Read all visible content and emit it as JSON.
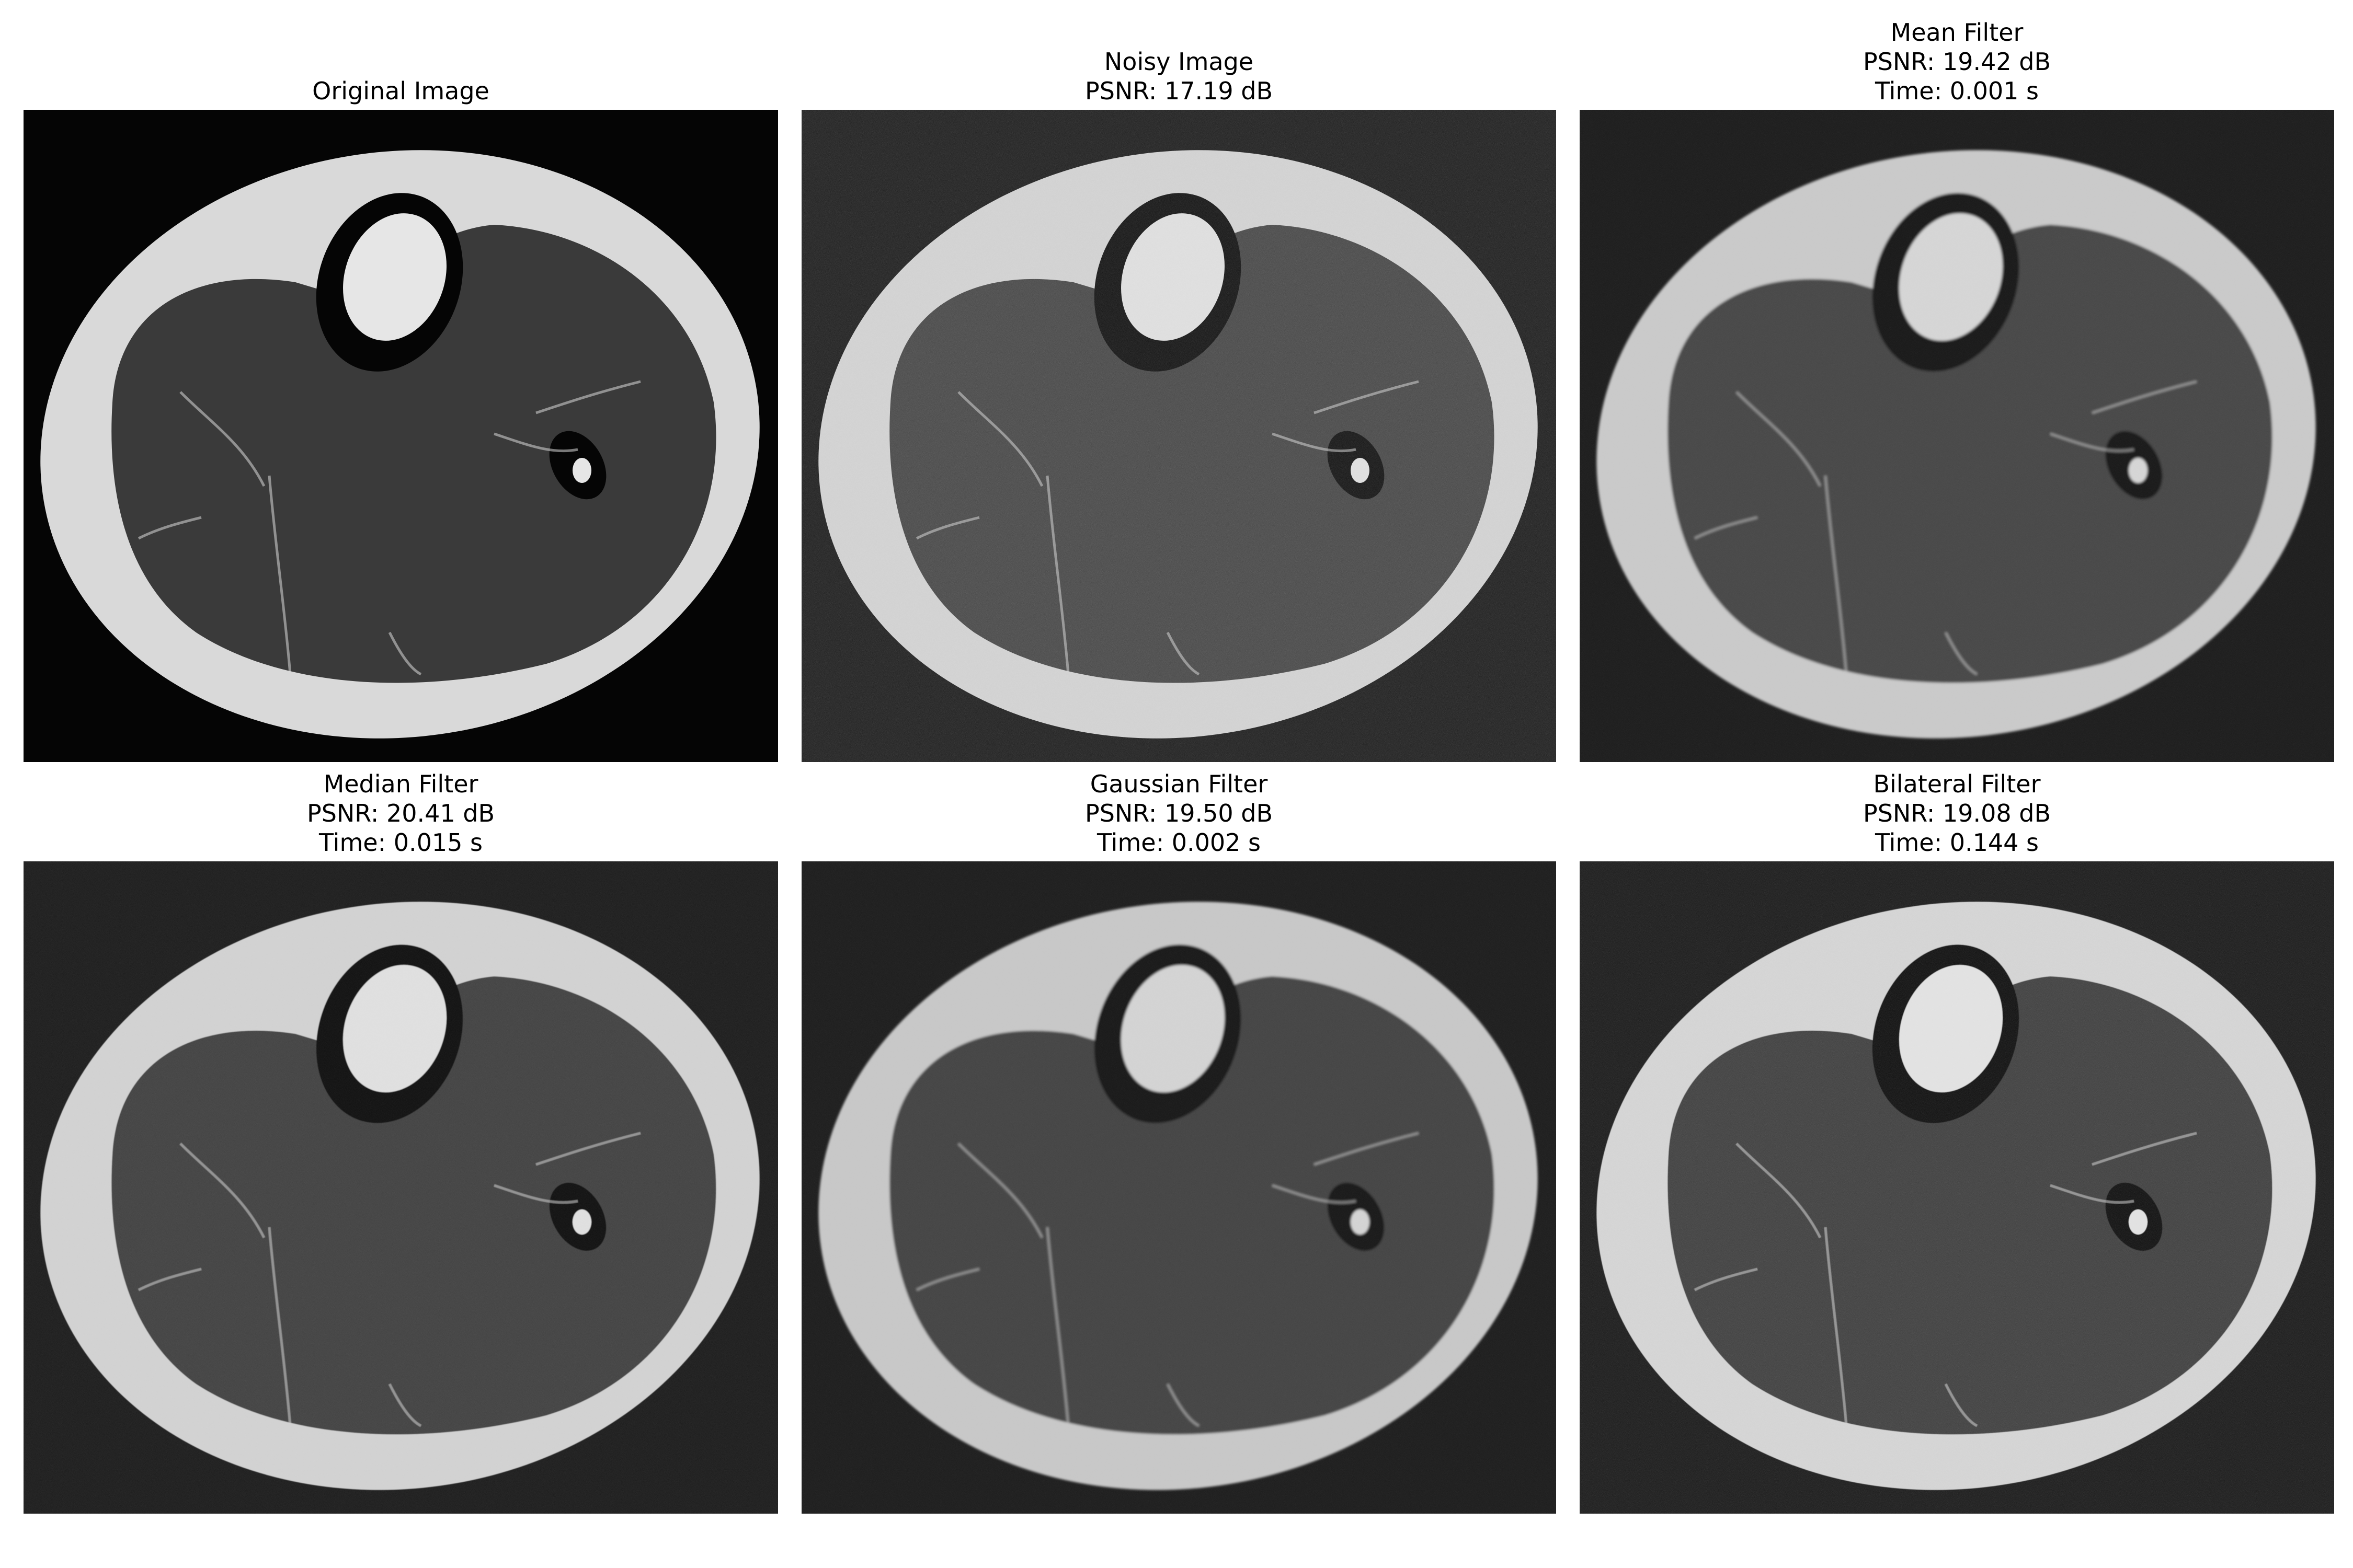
{
  "panels": [
    {
      "id": "original",
      "title": "Original Image",
      "subtitle_lines": [],
      "style": {
        "background": "#050505",
        "fat": "#d9d9d9",
        "muscle": "#3a3a3a",
        "noise": 0,
        "blur": 0,
        "boneCortex": "#050505",
        "marrow": "#e6e6e6"
      }
    },
    {
      "id": "noisy",
      "title": "Noisy Image",
      "subtitle_lines": [
        "PSNR: 17.19 dB"
      ],
      "style": {
        "background": "#1c1c1c",
        "fat": "#cfcfcf",
        "muscle": "#454545",
        "noise": 1,
        "blur": 0,
        "boneCortex": "#111111",
        "marrow": "#dcdcdc"
      }
    },
    {
      "id": "mean",
      "title": "Mean Filter",
      "subtitle_lines": [
        "PSNR: 19.42 dB",
        "Time: 0.001 s"
      ],
      "style": {
        "background": "#1a1a1a",
        "fat": "#c8c8c8",
        "muscle": "#444444",
        "noise": 0.35,
        "blur": 2.5,
        "boneCortex": "#161616",
        "marrow": "#d4d4d4"
      }
    },
    {
      "id": "median",
      "title": "Median Filter",
      "subtitle_lines": [
        "PSNR: 20.41 dB",
        "Time: 0.015 s"
      ],
      "style": {
        "background": "#1a1a1a",
        "fat": "#d0d0d0",
        "muscle": "#404040",
        "noise": 0.5,
        "blur": 0.8,
        "boneCortex": "#0e0e0e",
        "marrow": "#dedede"
      }
    },
    {
      "id": "gaussian",
      "title": "Gaussian Filter",
      "subtitle_lines": [
        "PSNR: 19.50 dB",
        "Time: 0.002 s"
      ],
      "style": {
        "background": "#1b1b1b",
        "fat": "#c6c6c6",
        "muscle": "#424242",
        "noise": 0.35,
        "blur": 2,
        "boneCortex": "#141414",
        "marrow": "#d2d2d2"
      }
    },
    {
      "id": "bilateral",
      "title": "Bilateral Filter",
      "subtitle_lines": [
        "PSNR: 19.08 dB",
        "Time: 0.144 s"
      ],
      "style": {
        "background": "#181818",
        "fat": "#d2d2d2",
        "muscle": "#3d3d3d",
        "noise": 0.8,
        "blur": 0.5,
        "boneCortex": "#0c0c0c",
        "marrow": "#e0e0e0"
      }
    }
  ]
}
